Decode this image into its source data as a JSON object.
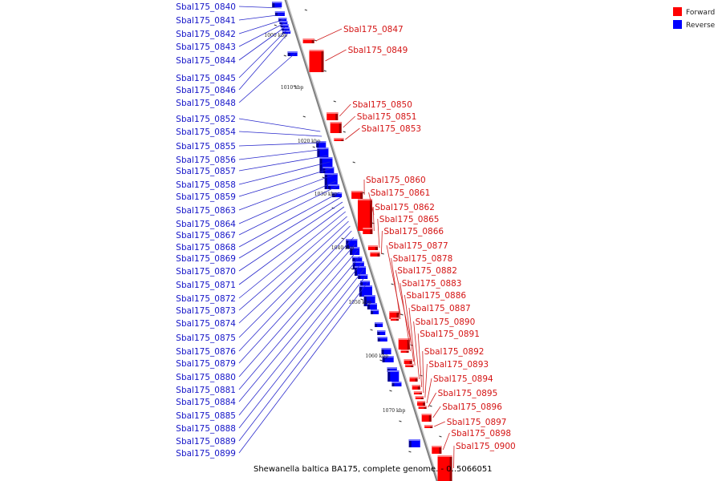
{
  "legend": {
    "forward_label": "Forward",
    "reverse_label": "Reverse",
    "forward_color": "#ff0000",
    "reverse_color": "#0000ff"
  },
  "caption": "Shewanella baltica BA175, complete genome. - 0..5066051",
  "ticks": [
    "1000 kbp",
    "1010 kbp",
    "1020 kbp",
    "1030 kbp",
    "1040 kbp",
    "1050 kbp",
    "1060 kbp",
    "1070 kbp"
  ],
  "reverse_genes": [
    "Sbal175_0840",
    "Sbal175_0841",
    "Sbal175_0842",
    "Sbal175_0843",
    "Sbal175_0844",
    "Sbal175_0845",
    "Sbal175_0846",
    "Sbal175_0848",
    "Sbal175_0852",
    "Sbal175_0854",
    "Sbal175_0855",
    "Sbal175_0856",
    "Sbal175_0857",
    "Sbal175_0858",
    "Sbal175_0859",
    "Sbal175_0863",
    "Sbal175_0864",
    "Sbal175_0867",
    "Sbal175_0868",
    "Sbal175_0869",
    "Sbal175_0870",
    "Sbal175_0871",
    "Sbal175_0872",
    "Sbal175_0873",
    "Sbal175_0874",
    "Sbal175_0875",
    "Sbal175_0876",
    "Sbal175_0879",
    "Sbal175_0880",
    "Sbal175_0881",
    "Sbal175_0884",
    "Sbal175_0885",
    "Sbal175_0888",
    "Sbal175_0889",
    "Sbal175_0899"
  ],
  "forward_genes": [
    "Sbal175_0847",
    "Sbal175_0849",
    "Sbal175_0850",
    "Sbal175_0851",
    "Sbal175_0853",
    "Sbal175_0860",
    "Sbal175_0861",
    "Sbal175_0862",
    "Sbal175_0865",
    "Sbal175_0866",
    "Sbal175_0877",
    "Sbal175_0878",
    "Sbal175_0882",
    "Sbal175_0883",
    "Sbal175_0886",
    "Sbal175_0887",
    "Sbal175_0890",
    "Sbal175_0891",
    "Sbal175_0892",
    "Sbal175_0893",
    "Sbal175_0894",
    "Sbal175_0895",
    "Sbal175_0896",
    "Sbal175_0897",
    "Sbal175_0898",
    "Sbal175_0900"
  ]
}
